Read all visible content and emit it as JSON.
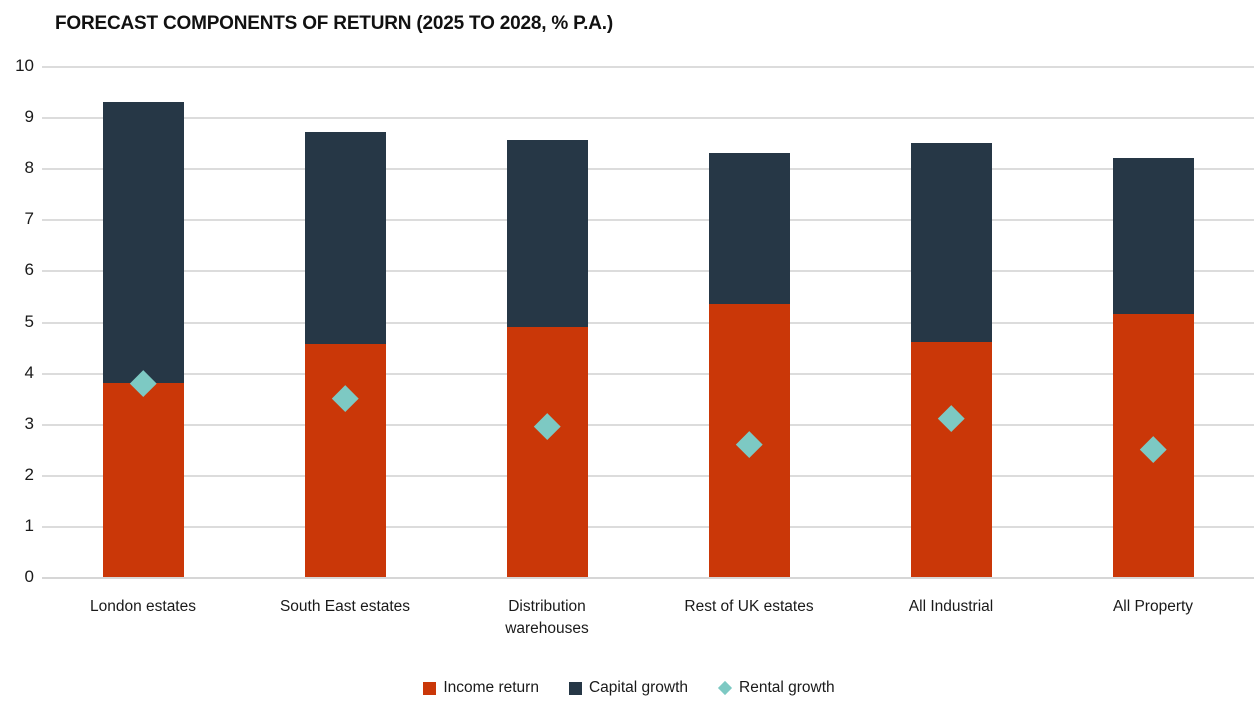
{
  "chart_data": {
    "type": "bar",
    "variant": "stacked-columns-with-diamond-markers",
    "title": "FORECAST COMPONENTS OF RETURN (2025 TO 2028, % P.A.)",
    "categories": [
      "London estates",
      "South East estates",
      "Distribution\nwarehouses",
      "Rest of UK estates",
      "All Industrial",
      "All Property"
    ],
    "series": [
      {
        "name": "Income return",
        "render": "bar",
        "color": "#ca3708",
        "values": [
          3.8,
          4.55,
          4.9,
          5.35,
          4.6,
          5.15
        ]
      },
      {
        "name": "Capital growth",
        "render": "bar",
        "color": "#263746",
        "values": [
          5.5,
          4.15,
          3.65,
          2.95,
          3.9,
          3.05
        ]
      },
      {
        "name": "Rental growth",
        "render": "diamond",
        "color": "#7dc9c3",
        "values": [
          3.8,
          3.5,
          2.95,
          2.6,
          3.1,
          2.5
        ]
      }
    ],
    "stacked_totals": [
      9.3,
      8.7,
      8.55,
      8.3,
      8.5,
      8.2
    ],
    "ylim": [
      0,
      10
    ],
    "yticks": [
      0,
      1,
      2,
      3,
      4,
      5,
      6,
      7,
      8,
      9,
      10
    ],
    "grid": "horizontal",
    "legend_position": "bottom",
    "colors": {
      "income_return": "#ca3708",
      "capital_growth": "#263746",
      "rental_growth": "#7dc9c3",
      "gridline": "#dcdcdc",
      "text": "#1a1a1a",
      "background": "#ffffff"
    }
  }
}
